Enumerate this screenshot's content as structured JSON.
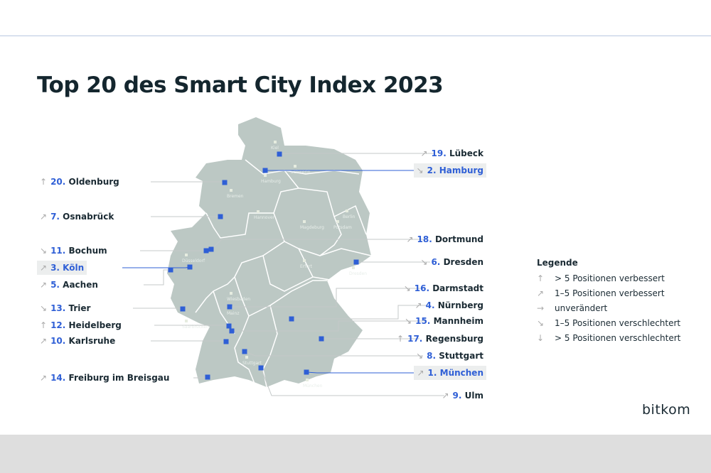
{
  "title": "Top 20 des Smart City Index 2023",
  "accent_color": "#2f5fd6",
  "map_color": "#bcc8c4",
  "trend_icons": {
    "up": "↑",
    "up-right": "↗",
    "right": "→",
    "down-right": "↘",
    "down": "↓"
  },
  "cities": [
    {
      "rank": "20.",
      "name": "Oldenburg",
      "trend": "up",
      "side": "left",
      "highlight": false
    },
    {
      "rank": "7.",
      "name": "Osnabrück",
      "trend": "up-right",
      "side": "left",
      "highlight": false
    },
    {
      "rank": "11.",
      "name": "Bochum",
      "trend": "down-right",
      "side": "left",
      "highlight": false
    },
    {
      "rank": "3.",
      "name": "Köln",
      "trend": "up-right",
      "side": "left",
      "highlight": true
    },
    {
      "rank": "5.",
      "name": "Aachen",
      "trend": "up-right",
      "side": "left",
      "highlight": false
    },
    {
      "rank": "13.",
      "name": "Trier",
      "trend": "down-right",
      "side": "left",
      "highlight": false
    },
    {
      "rank": "12.",
      "name": "Heidelberg",
      "trend": "up",
      "side": "left",
      "highlight": false
    },
    {
      "rank": "10.",
      "name": "Karlsruhe",
      "trend": "up-right",
      "side": "left",
      "highlight": false
    },
    {
      "rank": "14.",
      "name": "Freiburg im Breisgau",
      "trend": "up-right",
      "side": "left",
      "highlight": false
    },
    {
      "rank": "19.",
      "name": "Lübeck",
      "trend": "up-right",
      "side": "right",
      "highlight": false
    },
    {
      "rank": "2.",
      "name": "Hamburg",
      "trend": "down-right",
      "side": "right",
      "highlight": true
    },
    {
      "rank": "18.",
      "name": "Dortmund",
      "trend": "up-right",
      "side": "right",
      "highlight": false
    },
    {
      "rank": "6.",
      "name": "Dresden",
      "trend": "down-right",
      "side": "right",
      "highlight": false
    },
    {
      "rank": "16.",
      "name": "Darmstadt",
      "trend": "down-right",
      "side": "right",
      "highlight": false
    },
    {
      "rank": "4.",
      "name": "Nürnberg",
      "trend": "up-right",
      "side": "right",
      "highlight": false
    },
    {
      "rank": "15.",
      "name": "Mannheim",
      "trend": "down-right",
      "side": "right",
      "highlight": false
    },
    {
      "rank": "17.",
      "name": "Regensburg",
      "trend": "up",
      "side": "right",
      "highlight": false
    },
    {
      "rank": "8.",
      "name": "Stuttgart",
      "trend": "down-right",
      "side": "right",
      "highlight": false
    },
    {
      "rank": "1.",
      "name": "München",
      "trend": "up-right",
      "side": "right",
      "highlight": true
    },
    {
      "rank": "9.",
      "name": "Ulm",
      "trend": "up-right",
      "side": "right",
      "highlight": false
    }
  ],
  "capitals": [
    "Kiel",
    "Schwerin",
    "Hamburg",
    "Bremen",
    "Hannover",
    "Berlin",
    "Potsdam",
    "Magdeburg",
    "Düsseldorf",
    "Erfurt",
    "Dresden",
    "Wiesbaden",
    "Mainz",
    "Saarbrücken",
    "Stuttgart",
    "München"
  ],
  "legend": {
    "title": "Legende",
    "items": [
      {
        "trend": "up",
        "label": "> 5 Positionen verbessert"
      },
      {
        "trend": "up-right",
        "label": "1–5 Positionen verbessert"
      },
      {
        "trend": "right",
        "label": "unverändert"
      },
      {
        "trend": "down-right",
        "label": "1–5 Positionen verschlechtert"
      },
      {
        "trend": "down",
        "label": "> 5 Positionen verschlechtert"
      }
    ]
  },
  "logo": "bitkom"
}
